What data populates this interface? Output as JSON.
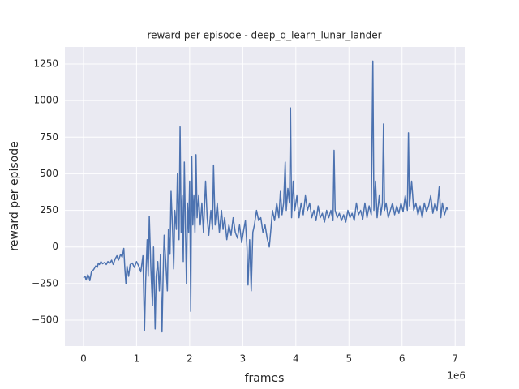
{
  "chart_data": {
    "type": "line",
    "title": "reward per episode - deep_q_learn_lunar_lander",
    "xlabel": "frames",
    "ylabel": "reward per episode",
    "x_offset_label": "1e6",
    "xlim": [
      -0.35,
      7.18
    ],
    "xticks": [
      0,
      1,
      2,
      3,
      4,
      5,
      6,
      7
    ],
    "ylim": [
      -677,
      1366
    ],
    "yticks": [
      {
        "value": -500,
        "label": "−500"
      },
      {
        "value": -250,
        "label": "−250"
      },
      0,
      250,
      500,
      750,
      1000,
      1250
    ],
    "grid": true,
    "x": [
      0.0,
      0.03,
      0.05,
      0.08,
      0.1,
      0.12,
      0.15,
      0.18,
      0.2,
      0.23,
      0.26,
      0.28,
      0.3,
      0.33,
      0.36,
      0.4,
      0.43,
      0.46,
      0.5,
      0.53,
      0.56,
      0.6,
      0.63,
      0.66,
      0.7,
      0.73,
      0.76,
      0.78,
      0.8,
      0.82,
      0.85,
      0.88,
      0.92,
      0.96,
      1.0,
      1.04,
      1.08,
      1.12,
      1.15,
      1.17,
      1.2,
      1.22,
      1.24,
      1.27,
      1.3,
      1.32,
      1.35,
      1.37,
      1.4,
      1.43,
      1.45,
      1.48,
      1.5,
      1.52,
      1.55,
      1.58,
      1.6,
      1.63,
      1.65,
      1.68,
      1.7,
      1.72,
      1.75,
      1.77,
      1.8,
      1.82,
      1.84,
      1.86,
      1.88,
      1.9,
      1.92,
      1.94,
      1.96,
      1.98,
      2.0,
      2.02,
      2.04,
      2.06,
      2.08,
      2.1,
      2.12,
      2.14,
      2.17,
      2.2,
      2.23,
      2.26,
      2.3,
      2.33,
      2.36,
      2.4,
      2.43,
      2.45,
      2.48,
      2.52,
      2.56,
      2.6,
      2.63,
      2.66,
      2.7,
      2.74,
      2.78,
      2.82,
      2.86,
      2.9,
      2.94,
      2.98,
      3.02,
      3.05,
      3.08,
      3.1,
      3.13,
      3.16,
      3.19,
      3.22,
      3.26,
      3.3,
      3.34,
      3.38,
      3.42,
      3.46,
      3.5,
      3.53,
      3.56,
      3.6,
      3.64,
      3.68,
      3.71,
      3.74,
      3.77,
      3.8,
      3.82,
      3.85,
      3.88,
      3.9,
      3.92,
      3.95,
      3.98,
      4.02,
      4.06,
      4.1,
      4.14,
      4.18,
      4.22,
      4.26,
      4.3,
      4.34,
      4.38,
      4.42,
      4.46,
      4.5,
      4.54,
      4.58,
      4.62,
      4.66,
      4.7,
      4.72,
      4.74,
      4.78,
      4.82,
      4.86,
      4.9,
      4.94,
      4.98,
      5.02,
      5.06,
      5.1,
      5.14,
      5.18,
      5.22,
      5.26,
      5.3,
      5.34,
      5.38,
      5.42,
      5.45,
      5.47,
      5.5,
      5.53,
      5.57,
      5.6,
      5.63,
      5.65,
      5.67,
      5.7,
      5.74,
      5.78,
      5.82,
      5.86,
      5.9,
      5.94,
      5.98,
      6.02,
      6.06,
      6.1,
      6.12,
      6.14,
      6.18,
      6.22,
      6.26,
      6.3,
      6.34,
      6.38,
      6.42,
      6.46,
      6.5,
      6.54,
      6.58,
      6.62,
      6.66,
      6.7,
      6.73,
      6.76,
      6.8,
      6.84,
      6.87
    ],
    "series": [
      {
        "color": "#4c72b0",
        "values": [
          -210,
          -200,
          -225,
          -190,
          -200,
          -230,
          -170,
          -160,
          -150,
          -130,
          -140,
          -110,
          -120,
          -100,
          -115,
          -105,
          -120,
          -100,
          -110,
          -90,
          -120,
          -80,
          -60,
          -90,
          -50,
          -70,
          -10,
          -150,
          -250,
          -130,
          -200,
          -120,
          -110,
          -140,
          -100,
          -130,
          -170,
          -60,
          -570,
          -250,
          50,
          -200,
          210,
          -150,
          -400,
          0,
          -560,
          -200,
          -100,
          -300,
          -50,
          -580,
          -200,
          80,
          -100,
          -300,
          120,
          -50,
          380,
          100,
          -150,
          250,
          120,
          500,
          50,
          820,
          100,
          350,
          -100,
          580,
          150,
          -250,
          300,
          100,
          450,
          -440,
          620,
          150,
          350,
          100,
          630,
          200,
          350,
          150,
          300,
          100,
          450,
          200,
          80,
          250,
          120,
          560,
          150,
          300,
          100,
          250,
          120,
          200,
          50,
          150,
          80,
          200,
          100,
          60,
          150,
          30,
          120,
          180,
          0,
          -260,
          50,
          -300,
          100,
          150,
          250,
          180,
          200,
          100,
          150,
          60,
          0,
          120,
          250,
          180,
          300,
          200,
          380,
          220,
          300,
          580,
          250,
          400,
          300,
          950,
          200,
          450,
          250,
          350,
          200,
          300,
          220,
          350,
          250,
          300,
          200,
          250,
          180,
          280,
          200,
          230,
          170,
          250,
          200,
          250,
          180,
          660,
          250,
          200,
          230,
          180,
          220,
          170,
          250,
          200,
          230,
          180,
          300,
          220,
          250,
          190,
          300,
          200,
          280,
          220,
          1270,
          250,
          450,
          200,
          350,
          220,
          300,
          840,
          250,
          300,
          200,
          250,
          300,
          220,
          280,
          230,
          300,
          240,
          350,
          250,
          780,
          280,
          450,
          250,
          300,
          220,
          280,
          200,
          300,
          240,
          280,
          350,
          230,
          300,
          250,
          410,
          200,
          300,
          220,
          270,
          250
        ]
      }
    ]
  }
}
